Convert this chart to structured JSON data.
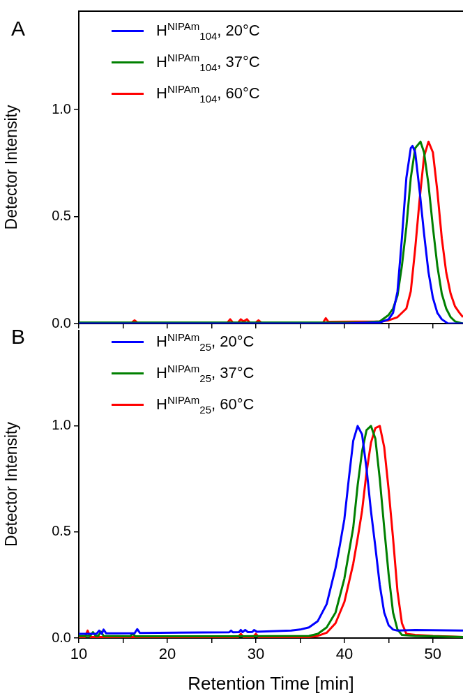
{
  "chart_data": [
    {
      "type": "line",
      "ylabel": "Detector Intensity",
      "annotations": [
        "A"
      ],
      "xlim": [
        10,
        53.4
      ],
      "ylim": [
        0,
        1.46
      ],
      "xticks": [
        10,
        {
          "value": 15,
          "label": null
        },
        20,
        {
          "value": 25,
          "label": null
        },
        30,
        {
          "value": 35,
          "label": null
        },
        40,
        {
          "value": 45,
          "label": null
        },
        50
      ],
      "yticks": [
        {
          "value": 0,
          "label": "0.0"
        },
        {
          "value": 0.5,
          "label": "0.5"
        },
        {
          "value": 1,
          "label": "1.0"
        }
      ],
      "tick_labels": "y",
      "legend": "top left",
      "marker": "none",
      "line_style": "solid",
      "series": [
        {
          "name": "H$^{NIPAm}$$_{104}$, 20°C",
          "color": "#0000ff",
          "x": [
            10,
            40,
            44,
            45,
            45.5,
            46,
            46.5,
            47,
            47.5,
            47.7,
            48,
            48.5,
            49,
            49.5,
            50,
            50.5,
            51,
            51.7,
            53.4
          ],
          "values": [
            0,
            0,
            0.005,
            0.02,
            0.05,
            0.15,
            0.4,
            0.68,
            0.82,
            0.83,
            0.8,
            0.62,
            0.42,
            0.24,
            0.12,
            0.05,
            0.02,
            0,
            0
          ]
        },
        {
          "name": "H$^{NIPAm}$$_{104}$, 37°C",
          "color": "#008000",
          "x": [
            10,
            42,
            44,
            45,
            45.5,
            46,
            46.5,
            47,
            47.5,
            48,
            48.6,
            49,
            49.5,
            50,
            50.5,
            51,
            51.5,
            52,
            52.5,
            53.4
          ],
          "values": [
            0.005,
            0.005,
            0.01,
            0.04,
            0.07,
            0.13,
            0.27,
            0.45,
            0.68,
            0.82,
            0.85,
            0.8,
            0.65,
            0.45,
            0.27,
            0.14,
            0.07,
            0.03,
            0.01,
            0
          ]
        },
        {
          "name": "H$^{NIPAm}$$_{104}$, 60°C",
          "color": "#ff0000",
          "x": [
            10,
            16,
            16.3,
            16.6,
            26.8,
            27.1,
            27.4,
            28,
            28.3,
            28.6,
            29,
            29.3,
            30,
            30.3,
            30.6,
            37.6,
            37.9,
            38.2,
            44,
            45,
            46,
            47,
            47.5,
            48,
            48.5,
            49,
            49.5,
            50,
            50.5,
            51,
            51.5,
            52,
            52.5,
            53,
            53.4
          ],
          "values": [
            0.005,
            0.005,
            0.015,
            0.005,
            0.005,
            0.02,
            0.005,
            0.005,
            0.02,
            0.01,
            0.02,
            0.005,
            0.005,
            0.015,
            0.005,
            0.005,
            0.025,
            0.008,
            0.01,
            0.015,
            0.03,
            0.07,
            0.15,
            0.35,
            0.58,
            0.78,
            0.85,
            0.8,
            0.62,
            0.4,
            0.24,
            0.14,
            0.08,
            0.05,
            0.03
          ]
        }
      ]
    },
    {
      "type": "line",
      "xlabel": "Retention Time [min]",
      "ylabel": "Detector Intensity",
      "annotations": [
        "B"
      ],
      "xlim": [
        10,
        53.4
      ],
      "ylim": [
        0,
        1.45
      ],
      "xticks": [
        10,
        {
          "value": 15,
          "label": null
        },
        20,
        {
          "value": 25,
          "label": null
        },
        30,
        {
          "value": 35,
          "label": null
        },
        40,
        {
          "value": 45,
          "label": null
        },
        50
      ],
      "yticks": [
        {
          "value": 0,
          "label": "0.0"
        },
        {
          "value": 0.5,
          "label": "0.5"
        },
        {
          "value": 1,
          "label": "1.0"
        }
      ],
      "legend": "top left",
      "marker": "none",
      "line_style": "solid",
      "series": [
        {
          "name": "H$^{NIPAm}$$_{25}$, 20°C",
          "color": "#0000ff",
          "x": [
            10,
            12,
            12.3,
            12.6,
            12.8,
            13.1,
            16.3,
            16.6,
            16.9,
            27,
            27.2,
            27.4,
            28.1,
            28.3,
            28.5,
            28.8,
            29.1,
            29.6,
            29.8,
            30.1,
            34,
            35,
            36,
            37,
            38,
            39,
            39.5,
            40,
            40.5,
            41,
            41.5,
            42,
            42.5,
            43,
            43.5,
            44,
            44.5,
            45,
            45.5,
            46,
            48,
            53.4
          ],
          "values": [
            0.02,
            0.02,
            0.035,
            0.02,
            0.04,
            0.022,
            0.022,
            0.042,
            0.024,
            0.027,
            0.035,
            0.027,
            0.028,
            0.038,
            0.028,
            0.038,
            0.028,
            0.029,
            0.038,
            0.03,
            0.035,
            0.04,
            0.05,
            0.08,
            0.16,
            0.33,
            0.44,
            0.56,
            0.75,
            0.93,
            1.0,
            0.96,
            0.8,
            0.6,
            0.43,
            0.25,
            0.12,
            0.06,
            0.04,
            0.035,
            0.038,
            0.035
          ]
        },
        {
          "name": "H$^{NIPAm}$$_{25}$, 37°C",
          "color": "#008000",
          "x": [
            10,
            11.3,
            11.6,
            11.9,
            12.2,
            12.5,
            12.8,
            15.8,
            16.1,
            16.4,
            27,
            36,
            37,
            38,
            39,
            40,
            40.5,
            41,
            41.5,
            42,
            42.5,
            43,
            43.5,
            44,
            44.5,
            45,
            45.5,
            46,
            46.5,
            48,
            53.4
          ],
          "values": [
            0.01,
            0.01,
            0.028,
            0.01,
            0.01,
            0.03,
            0.01,
            0.008,
            0.02,
            0.008,
            0.008,
            0.01,
            0.02,
            0.05,
            0.12,
            0.28,
            0.4,
            0.52,
            0.72,
            0.88,
            0.98,
            1.0,
            0.94,
            0.75,
            0.52,
            0.3,
            0.12,
            0.04,
            0.015,
            0.01,
            0.005
          ]
        },
        {
          "name": "H$^{NIPAm}$$_{25}$, 60°C",
          "color": "#ff0000",
          "x": [
            10,
            10.7,
            11,
            11.3,
            28,
            28.3,
            28.6,
            29.7,
            30,
            30.3,
            36,
            37,
            38,
            39,
            40,
            41,
            41.5,
            42,
            42.5,
            43,
            43.5,
            44,
            44.5,
            45,
            45.5,
            46,
            46.5,
            47,
            48,
            50,
            53.4
          ],
          "values": [
            0.005,
            0.005,
            0.035,
            0.005,
            0.005,
            0.02,
            0.005,
            0.005,
            0.02,
            0.005,
            0.005,
            0.01,
            0.025,
            0.07,
            0.17,
            0.35,
            0.47,
            0.6,
            0.78,
            0.92,
            0.99,
            1.0,
            0.9,
            0.7,
            0.47,
            0.22,
            0.07,
            0.02,
            0.015,
            0.01,
            0.005
          ]
        }
      ]
    }
  ]
}
